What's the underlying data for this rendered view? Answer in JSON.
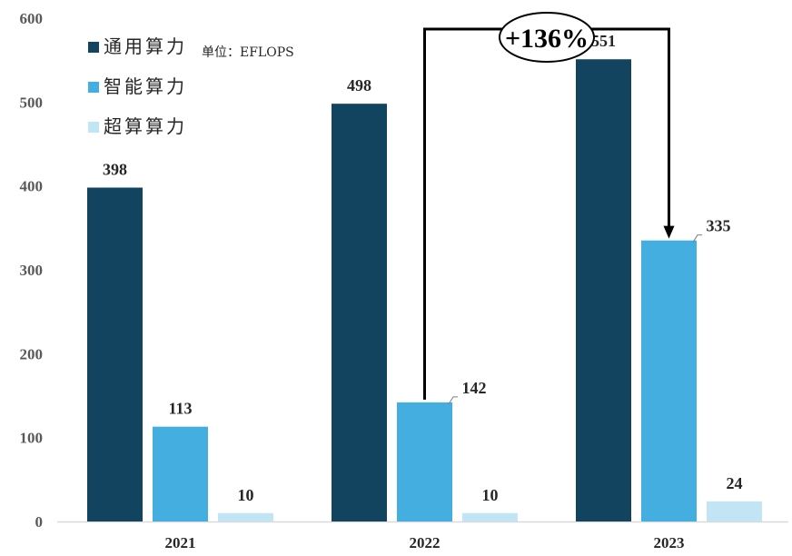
{
  "chart_data": {
    "type": "bar",
    "categories": [
      "2021",
      "2022",
      "2023"
    ],
    "series": [
      {
        "name": "通用算力",
        "values": [
          398,
          498,
          551
        ],
        "color": "#12435f"
      },
      {
        "name": "智能算力",
        "values": [
          113,
          142,
          335
        ],
        "color": "#45aee0"
      },
      {
        "name": "超算算力",
        "values": [
          10,
          10,
          24
        ],
        "color": "#c2e5f5"
      }
    ],
    "unit_note": "单位：EFLOPS",
    "ylim": [
      0,
      600
    ],
    "yticks": [
      "0",
      "100",
      "200",
      "300",
      "400",
      "500",
      "600"
    ],
    "legend_position": "top-left",
    "grid": false,
    "annotation": {
      "text": "+136%",
      "from": {
        "category": "2022",
        "series": "智能算力"
      },
      "to": {
        "category": "2023",
        "series": "智能算力"
      }
    }
  }
}
